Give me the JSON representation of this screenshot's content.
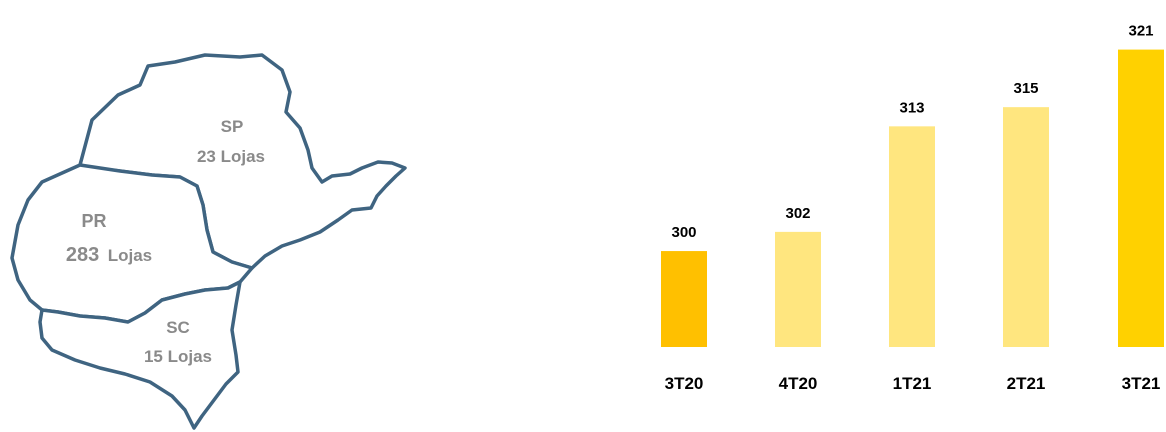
{
  "map": {
    "sp": {
      "name": "SP",
      "stores": "23 Lojas"
    },
    "pr": {
      "name": "PR",
      "stores_count": "283",
      "stores_unit": "Lojas"
    },
    "sc": {
      "name": "SC",
      "stores": "15 Lojas"
    },
    "border_color": "#3f6481",
    "label_color": "#8a8a8a"
  },
  "chart_data": {
    "type": "bar",
    "categories": [
      "3T20",
      "4T20",
      "1T21",
      "2T21",
      "3T21"
    ],
    "values": [
      300,
      302,
      313,
      315,
      321
    ],
    "colors": [
      "#ffc000",
      "#ffe67f",
      "#ffe67f",
      "#ffe67f",
      "#ffd100"
    ],
    "ylim": [
      290,
      322
    ],
    "title": "",
    "xlabel": "",
    "ylabel": ""
  }
}
